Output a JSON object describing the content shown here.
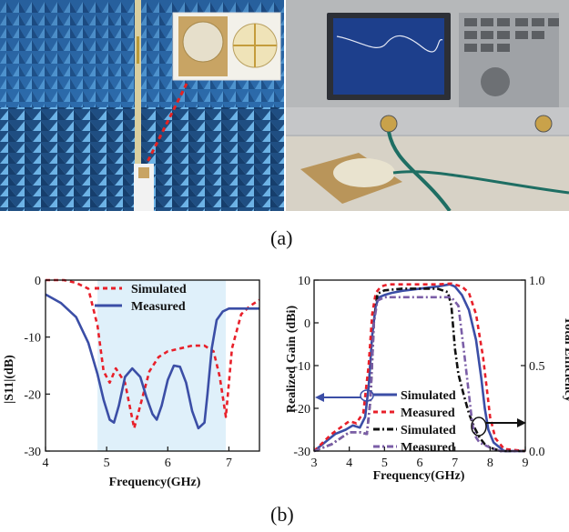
{
  "captions": {
    "a": "(a)",
    "b": "(b)"
  },
  "photos": [
    {
      "name": "anechoic-chamber-photo",
      "inset": "antenna-prototype-inset"
    },
    {
      "name": "vector-network-analyzer-photo"
    }
  ],
  "chart_data": [
    {
      "type": "line",
      "xlabel": "Frequency(GHz)",
      "ylabel": "|S11|(dB)",
      "xlim": [
        4,
        7.5
      ],
      "ylim": [
        -30,
        0
      ],
      "xticks": [
        "4",
        "5",
        "6",
        "7"
      ],
      "yticks": [
        "0",
        "-10",
        "-20",
        "-30"
      ],
      "shaded_band": [
        4.85,
        6.95
      ],
      "legend_position": "top-center",
      "series": [
        {
          "name": "Simulated",
          "style": "dashed",
          "color": "#e8202a",
          "x": [
            4.0,
            4.3,
            4.5,
            4.7,
            4.85,
            4.95,
            5.05,
            5.15,
            5.3,
            5.45,
            5.55,
            5.7,
            5.85,
            6.0,
            6.2,
            6.4,
            6.6,
            6.75,
            6.85,
            6.95,
            7.05,
            7.2,
            7.35,
            7.5
          ],
          "y": [
            0,
            0,
            -0.5,
            -1.5,
            -8,
            -16,
            -18,
            -15.5,
            -18,
            -26,
            -22,
            -16,
            -13.5,
            -12.5,
            -12,
            -11.5,
            -11.5,
            -12.5,
            -17,
            -24,
            -12,
            -6,
            -4.5,
            -3.5
          ]
        },
        {
          "name": "Measured",
          "style": "solid",
          "color": "#3b4ea6",
          "x": [
            4.0,
            4.25,
            4.5,
            4.7,
            4.85,
            4.95,
            5.05,
            5.12,
            5.2,
            5.3,
            5.42,
            5.55,
            5.65,
            5.75,
            5.82,
            5.9,
            6.0,
            6.1,
            6.2,
            6.3,
            6.4,
            6.5,
            6.6,
            6.65,
            6.72,
            6.8,
            6.9,
            7.0,
            7.2,
            7.5
          ],
          "y": [
            -2.5,
            -4,
            -6.5,
            -11,
            -16.5,
            -21,
            -24.5,
            -25,
            -22,
            -17,
            -15.5,
            -17,
            -20.5,
            -23.5,
            -24.5,
            -22,
            -17.5,
            -15,
            -15.2,
            -18,
            -23,
            -26,
            -25,
            -20,
            -12,
            -7,
            -5.5,
            -5,
            -5,
            -5
          ]
        }
      ]
    },
    {
      "type": "line",
      "xlabel": "Frequency(GHz)",
      "ylabel": "Realized Gain (dBi)",
      "y2label": "Total Efficiency",
      "xlim": [
        3,
        9
      ],
      "ylim": [
        -30,
        10
      ],
      "y2lim": [
        0,
        1.0
      ],
      "xticks": [
        "3",
        "4",
        "5",
        "6",
        "7",
        "8",
        "9"
      ],
      "yticks": [
        "10",
        "0",
        "-10",
        "-20",
        "-30"
      ],
      "y2ticks": [
        "1.0",
        "0.5",
        "0.0"
      ],
      "legend_position": "bottom-center",
      "series": [
        {
          "name": "Simulated",
          "axis": "left",
          "style": "solid",
          "color": "#3b4ea6",
          "x": [
            3.0,
            3.3,
            3.6,
            3.9,
            4.1,
            4.3,
            4.45,
            4.55,
            4.65,
            4.75,
            4.85,
            5.0,
            5.2,
            5.5,
            6.0,
            6.5,
            6.85,
            7.0,
            7.2,
            7.4,
            7.6,
            7.75,
            7.85,
            7.95,
            8.1,
            8.4,
            9.0
          ],
          "y": [
            -30,
            -28,
            -26,
            -25,
            -24,
            -24.5,
            -22,
            -15,
            -3,
            4,
            6,
            6.5,
            7,
            7.5,
            8,
            8.5,
            9,
            8.5,
            6.5,
            3,
            -4,
            -13,
            -20,
            -25,
            -28,
            -30,
            -30
          ]
        },
        {
          "name": "Measured",
          "axis": "left",
          "style": "dashed",
          "color": "#e8202a",
          "x": [
            3.0,
            3.5,
            4.0,
            4.2,
            4.4,
            4.55,
            4.65,
            4.75,
            4.9,
            5.1,
            5.5,
            6.0,
            6.5,
            6.9,
            7.2,
            7.4,
            7.6,
            7.8,
            7.9,
            8.0,
            8.15,
            8.4,
            9.0
          ],
          "y": [
            -30,
            -26,
            -23,
            -23.5,
            -21,
            -10,
            2,
            7,
            8.5,
            9,
            9,
            9,
            9,
            9.2,
            8.5,
            7,
            2,
            -8,
            -15,
            -22,
            -27,
            -29.5,
            -30
          ]
        },
        {
          "name": "Simulated",
          "axis": "right",
          "style": "dash-dot",
          "color": "#111111",
          "x": [
            3.0,
            3.5,
            4.0,
            4.3,
            4.5,
            4.6,
            4.7,
            4.8,
            5.0,
            5.5,
            6.0,
            6.5,
            6.8,
            6.9,
            7.0,
            7.1,
            7.25,
            7.4,
            7.55,
            7.7,
            7.85,
            8.0,
            8.3,
            9.0
          ],
          "y": [
            0.0,
            0.04,
            0.11,
            0.11,
            0.1,
            0.3,
            0.75,
            0.92,
            0.94,
            0.95,
            0.95,
            0.95,
            0.93,
            0.85,
            0.6,
            0.45,
            0.33,
            0.22,
            0.14,
            0.08,
            0.04,
            0.02,
            0.0,
            0.0
          ]
        },
        {
          "name": "Measured",
          "axis": "right",
          "style": "dash-dot",
          "color": "#7b5ea7",
          "x": [
            3.0,
            3.5,
            4.0,
            4.3,
            4.5,
            4.6,
            4.7,
            4.8,
            5.0,
            5.5,
            6.0,
            6.5,
            6.9,
            7.1,
            7.25,
            7.35,
            7.5,
            7.6,
            7.7,
            7.8,
            8.0,
            8.3,
            9.0
          ],
          "y": [
            0.0,
            0.04,
            0.11,
            0.11,
            0.1,
            0.3,
            0.75,
            0.88,
            0.9,
            0.9,
            0.9,
            0.9,
            0.9,
            0.85,
            0.6,
            0.42,
            0.15,
            0.08,
            0.05,
            0.04,
            0.02,
            0.0,
            0.0
          ]
        }
      ]
    }
  ]
}
